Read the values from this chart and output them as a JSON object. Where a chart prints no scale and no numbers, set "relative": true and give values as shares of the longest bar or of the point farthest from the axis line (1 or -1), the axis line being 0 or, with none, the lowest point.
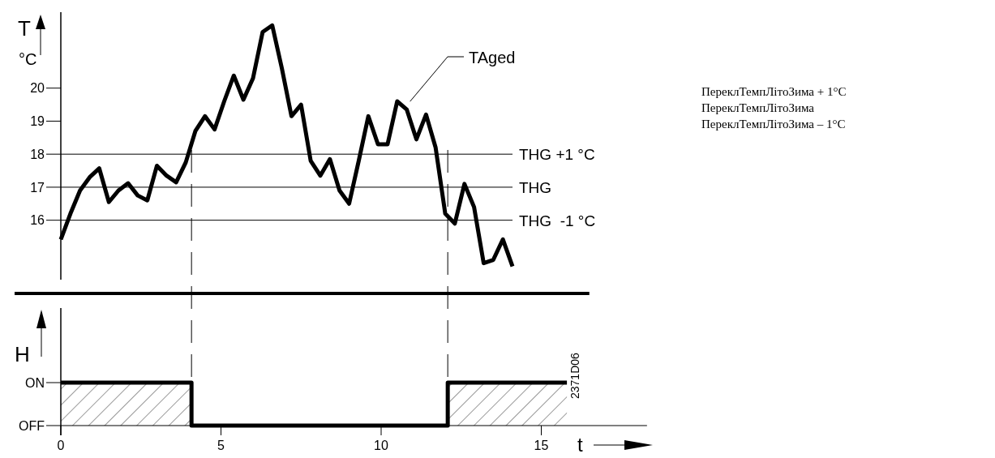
{
  "chart_data": [
    {
      "type": "line",
      "ylabel": "T",
      "categories": [
        null,
        null,
        null,
        null,
        null,
        null,
        null,
        null,
        null,
        null,
        null,
        null,
        null,
        null,
        null,
        null,
        null,
        null,
        null,
        null,
        null,
        null,
        null,
        null,
        null,
        null,
        null,
        null,
        null,
        null,
        null,
        null,
        null,
        null,
        null,
        null,
        null,
        null,
        null,
        null,
        null,
        null,
        null,
        null,
        null,
        null,
        null,
        null
      ],
      "ylim": [
        14.2,
        22.3
      ],
      "yticks": [
        16,
        17,
        18,
        19,
        20
      ],
      "tick_labels": "y",
      "legend": "top right",
      "series": [
        {
          "name": "TAged",
          "color": "#000000",
          "values": [
            15.42,
            16.2,
            16.9,
            17.3,
            17.57,
            16.55,
            16.9,
            17.12,
            16.75,
            16.6,
            17.65,
            17.35,
            17.15,
            17.75,
            18.7,
            19.15,
            18.75,
            19.6,
            20.38,
            19.65,
            20.3,
            21.7,
            21.9,
            20.6,
            19.15,
            19.5,
            17.8,
            17.35,
            17.85,
            16.9,
            16.5,
            17.8,
            19.15,
            18.3,
            18.3,
            19.6,
            19.35,
            18.45,
            19.2,
            18.2,
            16.2,
            15.9,
            17.1,
            16.4,
            14.7,
            14.8,
            15.42,
            14.6
          ]
        }
      ],
      "ref_lines": [
        {
          "axis": "y",
          "value": 18,
          "label": "THG +1 °C",
          "color": "#000000"
        },
        {
          "axis": "y",
          "value": 17,
          "label": "THG",
          "color": "#000000"
        },
        {
          "axis": "y",
          "value": 16,
          "label": "THG  -1 °C",
          "color": "#000000"
        }
      ],
      "annotations": [
        "°C",
        "ПереклТемпЛітоЗима + 1°C",
        "ПереклТемпЛітоЗима",
        "ПереклТемпЛітоЗима – 1°C"
      ]
    },
    {
      "type": "area",
      "ylabel": "H",
      "xlabel": "t",
      "xlim": [
        0,
        18.3
      ],
      "xticks": [
        0,
        5,
        10,
        15
      ],
      "relative": true,
      "series": [
        {
          "color": "#000000",
          "x": [
            0,
            4.08,
            12.08,
            15.8
          ],
          "values": [
            1,
            0,
            1,
            1
          ]
        }
      ],
      "ref_lines": [
        {
          "axis": "x",
          "value": 4.08,
          "color": "#000000",
          "line_style": "dashed"
        },
        {
          "axis": "x",
          "value": 12.08,
          "color": "#000000",
          "line_style": "dashed"
        }
      ],
      "annotations": [
        "ON",
        "OFF",
        "2371D06"
      ]
    }
  ]
}
